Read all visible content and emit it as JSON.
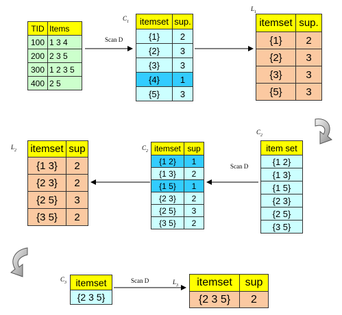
{
  "db": {
    "headers": [
      "TID",
      "Items"
    ],
    "rows": [
      [
        "100",
        "1 3 4"
      ],
      [
        "200",
        "2 3 5"
      ],
      [
        "300",
        "1 2 3 5"
      ],
      [
        "400",
        "2 5"
      ]
    ]
  },
  "scan_label": "Scan D",
  "c1": {
    "label_letter": "C",
    "label_sub": "1",
    "headers": [
      "itemset",
      "sup."
    ],
    "rows": [
      [
        "{1}",
        "2"
      ],
      [
        "{2}",
        "3"
      ],
      [
        "{3}",
        "3"
      ],
      [
        "{4}",
        "1"
      ],
      [
        "{5}",
        "3"
      ]
    ],
    "highlight_row": 3
  },
  "l1": {
    "label_letter": "L",
    "label_sub": "1",
    "headers": [
      "itemset",
      "sup."
    ],
    "rows": [
      [
        "{1}",
        "2"
      ],
      [
        "{2}",
        "3"
      ],
      [
        "{3}",
        "3"
      ],
      [
        "{5}",
        "3"
      ]
    ]
  },
  "c2_candidates": {
    "label_letter": "C",
    "label_sub": "2",
    "header": "item set",
    "rows": [
      "{1 2}",
      "{1 3}",
      "{1 5}",
      "{2 3}",
      "{2 5}",
      "{3 5}"
    ]
  },
  "c2_counted": {
    "label_letter": "C",
    "label_sub": "2",
    "headers": [
      "itemset",
      "sup"
    ],
    "rows": [
      [
        "{1 2}",
        "1"
      ],
      [
        "{1 3}",
        "2"
      ],
      [
        "{1 5}",
        "1"
      ],
      [
        "{2 3}",
        "2"
      ],
      [
        "{2 5}",
        "3"
      ],
      [
        "{3 5}",
        "2"
      ]
    ],
    "highlight_rows": [
      0,
      2
    ]
  },
  "l2": {
    "label_letter": "L",
    "label_sub": "2",
    "headers": [
      "itemset",
      "sup"
    ],
    "rows": [
      [
        "{1 3}",
        "2"
      ],
      [
        "{2 3}",
        "2"
      ],
      [
        "{2 5}",
        "3"
      ],
      [
        "{3 5}",
        "2"
      ]
    ]
  },
  "c3": {
    "label_letter": "C",
    "label_sub": "3",
    "header": "itemset",
    "rows": [
      "{2 3 5}"
    ]
  },
  "l3": {
    "label_letter": "L",
    "label_sub": "3",
    "headers": [
      "itemset",
      "sup"
    ],
    "rows": [
      [
        "{2 3 5}",
        "2"
      ]
    ]
  },
  "colors": {
    "header": "#ffff00",
    "db_body": "#ccffcc",
    "candidate_body": "#ccffff",
    "pruned_row": "#33ccff",
    "frequent_body": "#fbc9a1"
  }
}
